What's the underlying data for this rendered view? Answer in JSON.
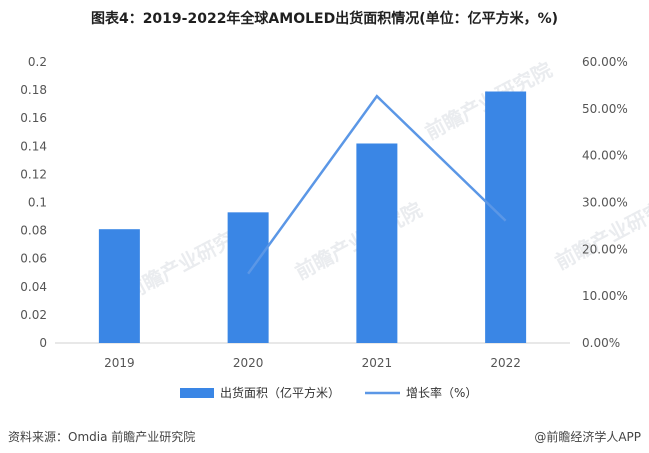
{
  "title": "图表4：2019-2022年全球AMOLED出货面积情况(单位：亿平方米，%)",
  "watermark_text": "前瞻产业研究院",
  "chart_data": {
    "type": "bar",
    "categories": [
      "2019",
      "2020",
      "2021",
      "2022"
    ],
    "series": [
      {
        "name": "出货面积（亿平方米）",
        "type": "bar",
        "axis": "left",
        "color": "#3a86e5",
        "values": [
          0.081,
          0.093,
          0.142,
          0.179
        ]
      },
      {
        "name": "增长率（%）",
        "type": "line",
        "axis": "right",
        "color": "#5b97e6",
        "values": [
          null,
          14.8,
          52.7,
          26.1
        ]
      }
    ],
    "y_left": {
      "min": 0,
      "max": 0.2,
      "ticks": [
        "0",
        "0.02",
        "0.04",
        "0.06",
        "0.08",
        "0.1",
        "0.12",
        "0.14",
        "0.16",
        "0.18",
        "0.2"
      ]
    },
    "y_right": {
      "min": 0,
      "max": 60,
      "ticks": [
        "0.00%",
        "10.00%",
        "20.00%",
        "30.00%",
        "40.00%",
        "50.00%",
        "60.00%"
      ]
    },
    "grid": false,
    "legend_position": "bottom"
  },
  "footer": {
    "source": "资料来源：Omdia 前瞻产业研究院",
    "brand": "@前瞻经济学人APP"
  }
}
